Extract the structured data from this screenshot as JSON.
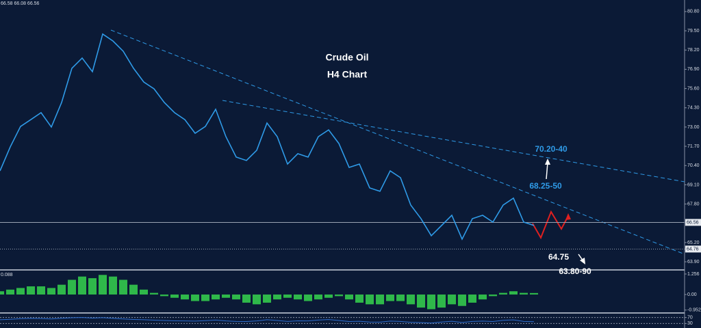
{
  "chart_data": [
    {
      "type": "line",
      "title": "Crude Oil",
      "subtitle": "H4 Chart",
      "info_text": "66.58 66.08 66.56",
      "color": "#2f9be8",
      "values": [
        70.04,
        71.66,
        73.04,
        73.5,
        73.97,
        73.0,
        74.66,
        76.97,
        77.66,
        76.74,
        79.28,
        78.81,
        78.12,
        76.97,
        76.04,
        75.58,
        74.66,
        73.97,
        73.5,
        72.58,
        73.04,
        74.2,
        72.35,
        70.97,
        70.74,
        71.43,
        73.27,
        72.35,
        70.5,
        71.2,
        70.97,
        72.35,
        72.81,
        71.89,
        70.27,
        70.5,
        68.89,
        68.66,
        70.04,
        69.58,
        67.73,
        66.81,
        65.66,
        66.35,
        67.04,
        65.43,
        66.81,
        67.04,
        66.58,
        67.73,
        68.2,
        66.58,
        66.35
      ],
      "ylim": [
        63.35,
        81.58
      ],
      "yticks": [
        {
          "value": 80.8,
          "label": "80.80"
        },
        {
          "value": 79.5,
          "label": "79.50"
        },
        {
          "value": 78.2,
          "label": "78.20"
        },
        {
          "value": 76.9,
          "label": "76.90"
        },
        {
          "value": 75.6,
          "label": "75.60"
        },
        {
          "value": 74.3,
          "label": "74.30"
        },
        {
          "value": 73,
          "label": "73.00"
        },
        {
          "value": 71.7,
          "label": "71.70"
        },
        {
          "value": 70.4,
          "label": "70.40"
        },
        {
          "value": 69.1,
          "label": "69.10"
        },
        {
          "value": 67.8,
          "label": "67.80"
        },
        {
          "value": 65.2,
          "label": "65.20"
        },
        {
          "value": 63.9,
          "label": "63.90"
        }
      ],
      "price_lines": [
        66.56,
        64.76
      ],
      "annotations": [
        "70.20-40",
        "68.25-50",
        "64.75",
        "63.80-90"
      ]
    },
    {
      "type": "bar",
      "label": "0.088",
      "color": "#2fb84a",
      "values": [
        0.2,
        0.3,
        0.4,
        0.5,
        0.5,
        0.4,
        0.6,
        0.9,
        1.1,
        1.0,
        1.2,
        1.1,
        0.9,
        0.6,
        0.3,
        0.1,
        -0.1,
        -0.2,
        -0.3,
        -0.4,
        -0.4,
        -0.3,
        -0.2,
        -0.3,
        -0.5,
        -0.6,
        -0.5,
        -0.3,
        -0.2,
        -0.3,
        -0.4,
        -0.3,
        -0.2,
        -0.1,
        -0.3,
        -0.5,
        -0.6,
        -0.6,
        -0.4,
        -0.4,
        -0.6,
        -0.8,
        -0.9,
        -0.8,
        -0.6,
        -0.7,
        -0.5,
        -0.3,
        -0.1,
        0.1,
        0.2,
        0.1,
        0.09
      ],
      "ylim": [
        -1.088,
        1.464
      ],
      "yticks": [
        1.256,
        {
          "value": 0,
          "label": "0.00"
        },
        -0.952
      ]
    },
    {
      "type": "line",
      "color": "#2f6fd0",
      "values": [
        55,
        58,
        62,
        64,
        63,
        60,
        65,
        68,
        70,
        66,
        69,
        64,
        60,
        57,
        55,
        52,
        50,
        48,
        47,
        46,
        49,
        53,
        47,
        44,
        43,
        47,
        55,
        50,
        44,
        48,
        47,
        53,
        56,
        50,
        43,
        45,
        40,
        39,
        46,
        44,
        38,
        36,
        33,
        40,
        45,
        37,
        44,
        46,
        43,
        51,
        54,
        44,
        42
      ],
      "ylim": [
        0,
        100
      ],
      "yticks": [
        70,
        30
      ]
    }
  ]
}
